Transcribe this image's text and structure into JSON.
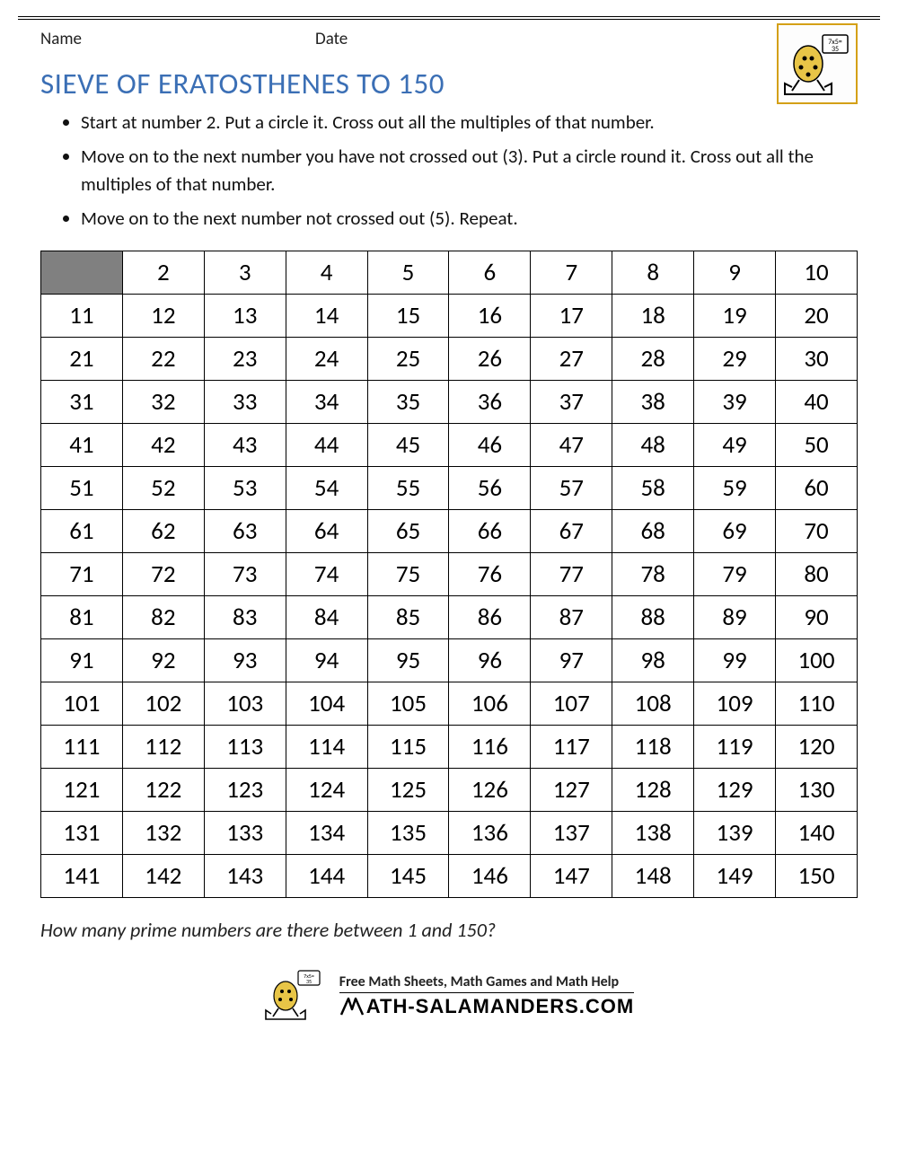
{
  "header": {
    "name_label": "Name",
    "date_label": "Date"
  },
  "title": "SIEVE OF ERATOSTHENES TO 150",
  "title_color": "#3b6fb5",
  "instructions": [
    "Start at number 2. Put a circle it. Cross out all the multiples of that number.",
    "Move on to the next number you have not crossed out (3). Put a circle round it. Cross out all the multiples of that number.",
    "Move on to the next number not crossed out (5). Repeat."
  ],
  "grid": {
    "type": "table",
    "rows": 15,
    "cols": 10,
    "start": 1,
    "end": 150,
    "blank_first_cell": true,
    "blank_cell_color": "#808080",
    "cell_border_color": "#000000",
    "cell_fontsize": 27,
    "background_color": "#ffffff"
  },
  "question": "How many prime numbers are there between 1 and 150?",
  "footer": {
    "tagline": "Free Math Sheets, Math Games and Math Help",
    "url_text": "ATH-SALAMANDERS.COM"
  }
}
